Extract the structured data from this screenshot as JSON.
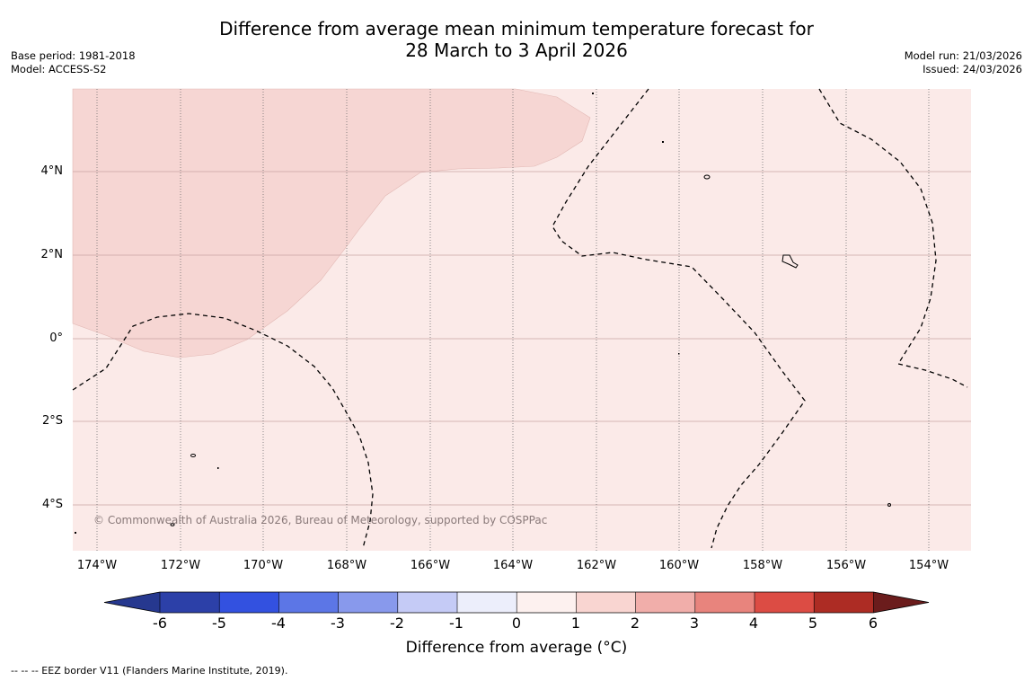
{
  "header": {
    "title_line1": "Difference from average mean minimum temperature forecast for",
    "title_line2": "28 March to 3 April 2026",
    "base_period": "Base period: 1981-2018",
    "model": "Model: ACCESS-S2",
    "model_run": "Model run: 21/03/2026",
    "issued": "Issued: 24/03/2026"
  },
  "map": {
    "lat_labels": [
      "4°N",
      "2°N",
      "0°",
      "2°S",
      "4°S"
    ],
    "lon_labels": [
      "174°W",
      "172°W",
      "170°W",
      "168°W",
      "166°W",
      "164°W",
      "162°W",
      "160°W",
      "158°W",
      "156°W",
      "154°W"
    ],
    "copyright": "© Commonwealth of Australia 2026, Bureau of Meteorology, supported by COSPPac",
    "fill_colors": {
      "class_0_1": "#fbeae8",
      "class_1_2": "#f6d6d3"
    }
  },
  "colorbar": {
    "ticks": [
      "-6",
      "-5",
      "-4",
      "-3",
      "-2",
      "-1",
      "0",
      "1",
      "2",
      "3",
      "4",
      "5",
      "6"
    ],
    "colors": [
      "#26388f",
      "#2c40a8",
      "#3351e0",
      "#5c76e6",
      "#8899ec",
      "#c5cbf6",
      "#eceefb",
      "#fdf1ef",
      "#f9d5d1",
      "#f1aeaa",
      "#e8847d",
      "#dc4c44",
      "#ad2c24",
      "#6b1c1c"
    ],
    "label": "Difference from average (°C)"
  },
  "footnote": "--  --  -- EEZ border V11 (Flanders Marine Institute, 2019)."
}
